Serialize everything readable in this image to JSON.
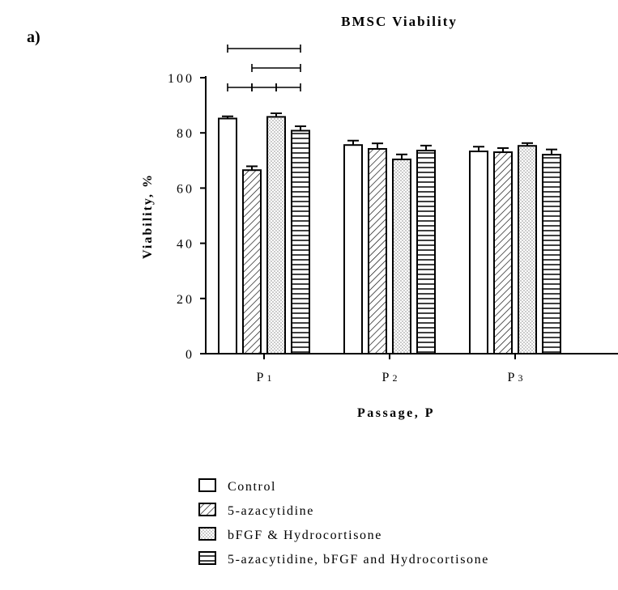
{
  "panel_label": "a)",
  "chart_data": {
    "type": "bar",
    "title": "BMSC Viability",
    "xlabel": "Passage, P",
    "ylabel": "Viability, %",
    "ylim": [
      0,
      100
    ],
    "yticks": [
      0,
      20,
      40,
      60,
      80,
      100
    ],
    "categories": [
      "P1",
      "P2",
      "P3"
    ],
    "category_labels": [
      {
        "main": "P",
        "sub": "1"
      },
      {
        "main": "P",
        "sub": "2"
      },
      {
        "main": "P",
        "sub": "3"
      }
    ],
    "series": [
      {
        "name": "Control",
        "pattern": "empty",
        "values": [
          85.2,
          75.6,
          73.3
        ],
        "errors": [
          0.8,
          1.6,
          1.7
        ]
      },
      {
        "name": "5-azacytidine",
        "pattern": "diagonal",
        "values": [
          66.5,
          74.2,
          73.0
        ],
        "errors": [
          1.4,
          2.0,
          1.5
        ]
      },
      {
        "name": "bFGF & Hydrocortisone",
        "pattern": "dots",
        "values": [
          85.8,
          70.4,
          75.3
        ],
        "errors": [
          1.3,
          1.8,
          1.0
        ]
      },
      {
        "name": "5-azacytidine, bFGF and Hydrocortisone",
        "pattern": "horizontal",
        "values": [
          80.8,
          73.6,
          72.1
        ],
        "errors": [
          1.6,
          1.8,
          1.9
        ]
      }
    ],
    "significance_brackets": [
      {
        "category": "P1",
        "from_series": 0,
        "to_series": 3,
        "level": 3
      },
      {
        "category": "P1",
        "from_series": 1,
        "to_series": 3,
        "level": 2
      },
      {
        "category": "P1",
        "from_series": 0,
        "to_series": 1,
        "level": 1
      },
      {
        "category": "P1",
        "from_series": 1,
        "to_series": 2,
        "level": 1
      },
      {
        "category": "P1",
        "from_series": 2,
        "to_series": 3,
        "level": 1
      }
    ],
    "legend_position": "bottom",
    "grid": false
  }
}
